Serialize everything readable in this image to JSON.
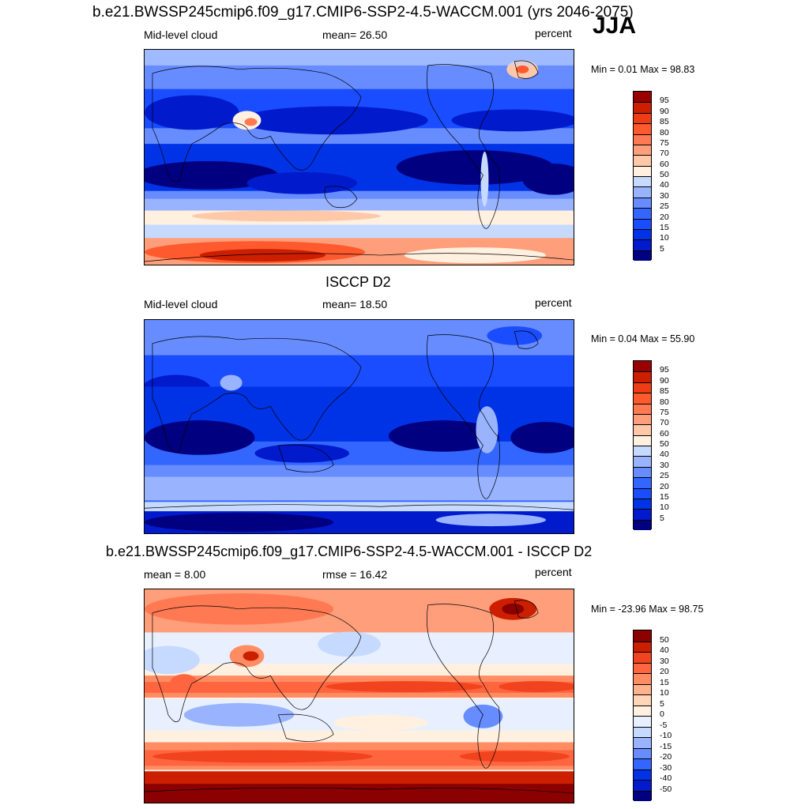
{
  "season": "JJA",
  "panels": [
    {
      "title": "b.e21.BWSSP245cmip6.f09_g17.CMIP6-SSP2-4.5-WACCM.001 (yrs 2046-2075)",
      "left": "Mid-level cloud",
      "center": "mean=  26.50",
      "right": "percent",
      "minmax": "Min =   0.01 Max =  98.83",
      "colorbar_labels": [
        "95",
        "90",
        "85",
        "80",
        "75",
        "70",
        "60",
        "50",
        "40",
        "30",
        "25",
        "20",
        "15",
        "10",
        "5"
      ]
    },
    {
      "title": "ISCCP D2",
      "left": "Mid-level cloud",
      "center": "mean=  18.50",
      "right": "percent",
      "minmax": "Min =   0.04 Max =  55.90",
      "colorbar_labels": [
        "95",
        "90",
        "85",
        "80",
        "75",
        "70",
        "60",
        "50",
        "40",
        "30",
        "25",
        "20",
        "15",
        "10",
        "5"
      ]
    },
    {
      "title": "b.e21.BWSSP245cmip6.f09_g17.CMIP6-SSP2-4.5-WACCM.001 - ISCCP D2",
      "left": "mean =   8.00",
      "center": "rmse =  16.42",
      "right": "percent",
      "minmax": "Min = -23.96 Max =  98.75",
      "colorbar_labels": [
        "50",
        "40",
        "30",
        "20",
        "15",
        "10",
        "5",
        "0",
        "-5",
        "-10",
        "-15",
        "-20",
        "-30",
        "-40",
        "-50"
      ]
    }
  ],
  "colors": {
    "abs_scale": [
      "#000080",
      "#001acc",
      "#0033e6",
      "#1a4dff",
      "#3366ff",
      "#668cff",
      "#99b3ff",
      "#c6d9ff",
      "#fff0e0",
      "#ffc8a8",
      "#ff9e7a",
      "#ff7a52",
      "#ff5a2e",
      "#ee3d14",
      "#cc1f00",
      "#990000"
    ],
    "diff_scale": [
      "#000080",
      "#001acc",
      "#0033e6",
      "#3366ff",
      "#668cff",
      "#99b3ff",
      "#c6d9ff",
      "#e8f0ff",
      "#fff0e0",
      "#ffd6b8",
      "#ffb28c",
      "#ff8c63",
      "#ff6640",
      "#f2431f",
      "#cc1f00",
      "#8b0000"
    ]
  }
}
